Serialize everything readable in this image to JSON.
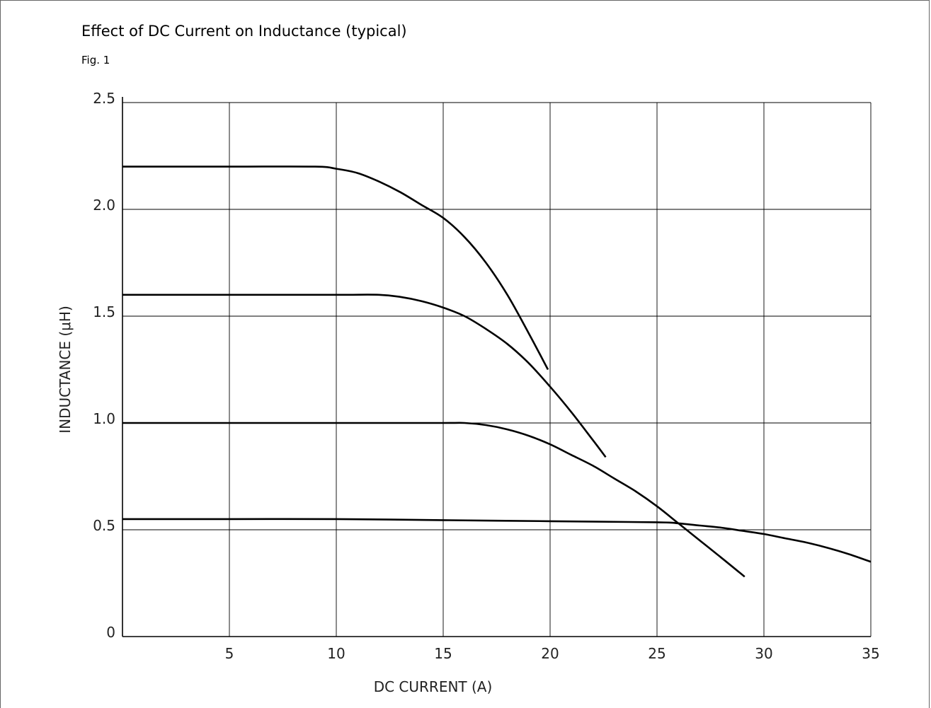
{
  "header": {
    "title": "Effect of DC Current on Inductance (typical)",
    "figure_label": "Fig. 1"
  },
  "chart_data": {
    "type": "line",
    "title": "Effect of DC Current on Inductance (typical)",
    "xlabel": "DC CURRENT (A)",
    "ylabel": "INDUCTANCE (μH)",
    "xlim": [
      0,
      35
    ],
    "ylim": [
      0,
      2.5
    ],
    "x_ticks": [
      5,
      10,
      15,
      20,
      25,
      30,
      35
    ],
    "x_tick_labels": [
      "5",
      "10",
      "15",
      "20",
      "25",
      "30",
      "35"
    ],
    "y_ticks": [
      0,
      0.5,
      1.0,
      1.5,
      2.0,
      2.5
    ],
    "y_tick_labels": [
      "0",
      "0.5",
      "1.0",
      "1.5",
      "2.0",
      "2.5"
    ],
    "grid": true,
    "line_color": "#000000",
    "series": [
      {
        "x": [
          0,
          5,
          9,
          10,
          11,
          12,
          13,
          14,
          15,
          16,
          17,
          18,
          19,
          19.9
        ],
        "y": [
          2.2,
          2.2,
          2.2,
          2.19,
          2.17,
          2.13,
          2.08,
          2.02,
          1.96,
          1.87,
          1.75,
          1.6,
          1.42,
          1.25
        ]
      },
      {
        "x": [
          0,
          5,
          10,
          12,
          13,
          14,
          15,
          16,
          17,
          18,
          19,
          20,
          21,
          22,
          22.6
        ],
        "y": [
          1.6,
          1.6,
          1.6,
          1.6,
          1.59,
          1.57,
          1.54,
          1.5,
          1.44,
          1.37,
          1.28,
          1.17,
          1.05,
          0.92,
          0.84
        ]
      },
      {
        "x": [
          0,
          5,
          10,
          15,
          16,
          17,
          18,
          19,
          20,
          21,
          22,
          23,
          24,
          25,
          26,
          27,
          28,
          29.1
        ],
        "y": [
          1.0,
          1.0,
          1.0,
          1.0,
          1.0,
          0.99,
          0.97,
          0.94,
          0.9,
          0.85,
          0.8,
          0.74,
          0.68,
          0.61,
          0.53,
          0.45,
          0.37,
          0.28
        ]
      },
      {
        "x": [
          0,
          5,
          10,
          15,
          20,
          25,
          26,
          27,
          28,
          29,
          30,
          31,
          32,
          33,
          34,
          35
        ],
        "y": [
          0.55,
          0.55,
          0.55,
          0.545,
          0.54,
          0.535,
          0.53,
          0.52,
          0.51,
          0.495,
          0.48,
          0.46,
          0.44,
          0.415,
          0.385,
          0.35
        ]
      }
    ]
  }
}
